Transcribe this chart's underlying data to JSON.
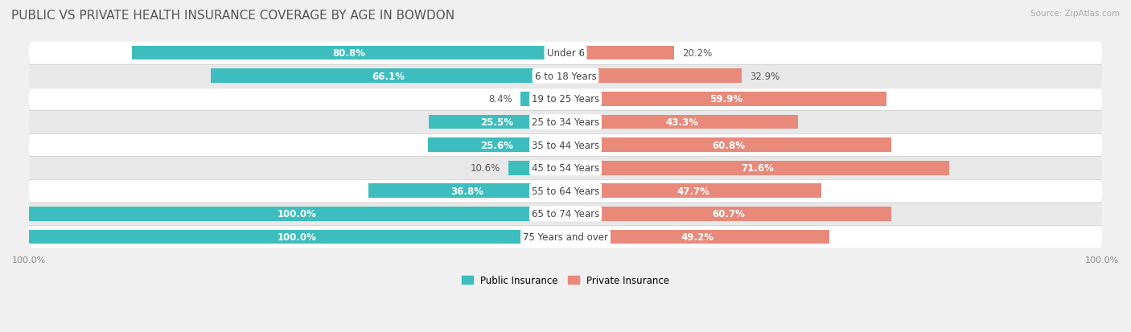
{
  "title": "PUBLIC VS PRIVATE HEALTH INSURANCE COVERAGE BY AGE IN BOWDON",
  "source": "Source: ZipAtlas.com",
  "categories": [
    "Under 6",
    "6 to 18 Years",
    "19 to 25 Years",
    "25 to 34 Years",
    "35 to 44 Years",
    "45 to 54 Years",
    "55 to 64 Years",
    "65 to 74 Years",
    "75 Years and over"
  ],
  "public_values": [
    80.8,
    66.1,
    8.4,
    25.5,
    25.6,
    10.6,
    36.8,
    100.0,
    100.0
  ],
  "private_values": [
    20.2,
    32.9,
    59.9,
    43.3,
    60.8,
    71.6,
    47.7,
    60.7,
    49.2
  ],
  "public_color": "#3dbdbd",
  "private_color": "#e8897a",
  "public_label": "Public Insurance",
  "private_label": "Private Insurance",
  "max_value": 100.0,
  "bar_height": 0.62,
  "bg_color": "#f0f0f0",
  "row_colors": [
    "#ffffff",
    "#e8e8e8"
  ],
  "title_fontsize": 11,
  "label_fontsize": 8.5,
  "category_fontsize": 8.5,
  "tick_fontsize": 8,
  "source_fontsize": 7.5
}
